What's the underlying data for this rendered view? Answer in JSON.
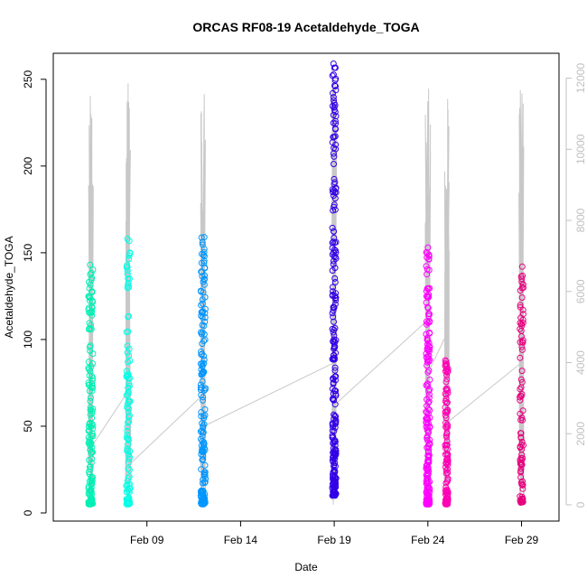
{
  "chart_data": {
    "type": "scatter",
    "title": "ORCAS RF08-19 Acetaldehyde_TOGA",
    "xlabel": "Date",
    "ylabel": "Acetaldehyde_TOGA",
    "x_axis": {
      "type": "date",
      "ticks": [
        "Feb 09",
        "Feb 14",
        "Feb 19",
        "Feb 24",
        "Feb 29"
      ],
      "range": [
        "2016-02-04",
        "2016-03-02"
      ]
    },
    "y_axis": {
      "ticks": [
        0,
        50,
        100,
        150,
        200,
        250
      ],
      "range": [
        0,
        265
      ]
    },
    "y2_axis": {
      "ticks": [
        0,
        2000,
        4000,
        6000,
        8000,
        10000,
        12000
      ],
      "range": [
        0,
        12700
      ],
      "color": "#c0c0c0"
    },
    "grid": false,
    "legend": "none",
    "series": [
      {
        "date": "2016-02-06",
        "color": "#00f0b4",
        "x_spread": 0.25,
        "y_min": 5,
        "y_max": 143,
        "count": 150
      },
      {
        "date": "2016-02-08",
        "color": "#00ffe6",
        "x_spread": 0.2,
        "y_min": 5,
        "y_max": 158,
        "count": 110
      },
      {
        "date": "2016-02-12",
        "color": "#0096ff",
        "x_spread": 0.25,
        "y_min": 5,
        "y_max": 159,
        "count": 160
      },
      {
        "date": "2016-02-19",
        "color": "#3200e6",
        "x_spread": 0.2,
        "y_min": 10,
        "y_max": 259,
        "count": 230
      },
      {
        "date": "2016-02-24",
        "color": "#ff00ff",
        "x_spread": 0.2,
        "y_min": 5,
        "y_max": 153,
        "count": 190
      },
      {
        "date": "2016-02-25",
        "color": "#ff00b4",
        "x_spread": 0.15,
        "y_min": 5,
        "y_max": 88,
        "count": 110
      },
      {
        "date": "2016-02-29",
        "color": "#e6007d",
        "x_spread": 0.2,
        "y_min": 6,
        "y_max": 142,
        "count": 90
      }
    ],
    "altitude_trace": {
      "color": "#c8c8c8",
      "flights": [
        {
          "date": "2016-02-06",
          "peak": 11800
        },
        {
          "date": "2016-02-08",
          "peak": 12100
        },
        {
          "date": "2016-02-12",
          "peak": 11600
        },
        {
          "date": "2016-02-19",
          "peak": 12400
        },
        {
          "date": "2016-02-24",
          "peak": 11800
        },
        {
          "date": "2016-02-25",
          "peak": 11800
        },
        {
          "date": "2016-02-29",
          "peak": 12200
        }
      ],
      "connectors": [
        {
          "from": [
            "2016-02-06",
            1600
          ],
          "to": [
            "2016-02-08",
            3200
          ]
        },
        {
          "from": [
            "2016-02-08",
            1100
          ],
          "to": [
            "2016-02-12",
            3100
          ]
        },
        {
          "from": [
            "2016-02-12",
            2200
          ],
          "to": [
            "2016-02-19",
            4000
          ]
        },
        {
          "from": [
            "2016-02-19",
            2800
          ],
          "to": [
            "2016-02-24",
            5200
          ]
        },
        {
          "from": [
            "2016-02-24",
            3700
          ],
          "to": [
            "2016-02-25",
            4800
          ]
        },
        {
          "from": [
            "2016-02-25",
            2300
          ],
          "to": [
            "2016-02-29",
            4000
          ]
        }
      ]
    }
  }
}
